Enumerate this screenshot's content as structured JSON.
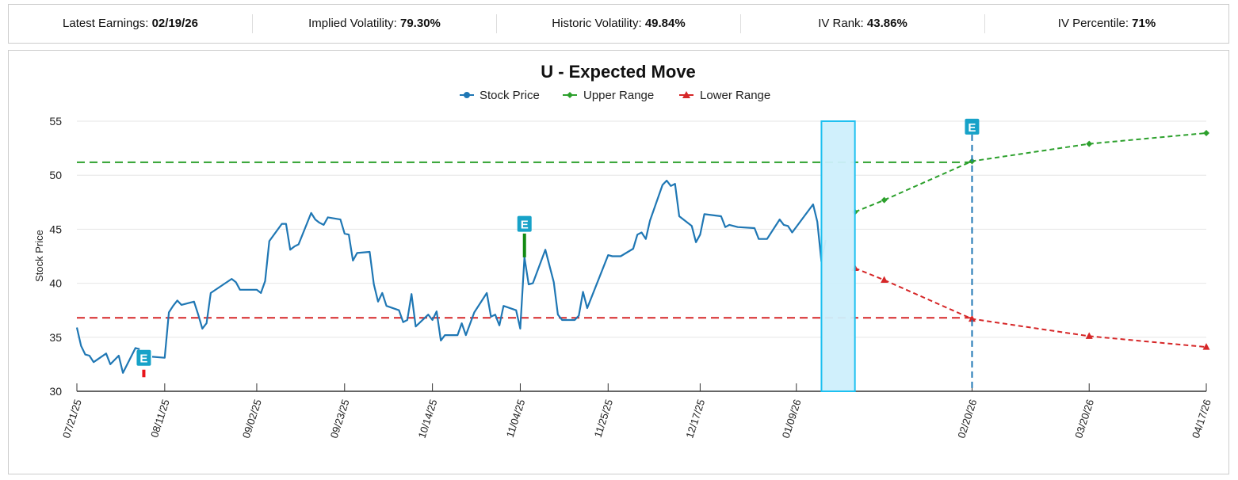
{
  "stats": [
    {
      "label": "Latest Earnings: ",
      "value": "02/19/26"
    },
    {
      "label": "Implied Volatility: ",
      "value": "79.30%"
    },
    {
      "label": "Historic Volatility: ",
      "value": "49.84%"
    },
    {
      "label": "IV Rank: ",
      "value": "43.86%"
    },
    {
      "label": "IV Percentile: ",
      "value": "71%"
    }
  ],
  "chart_data": {
    "type": "line",
    "title": "U - Expected Move",
    "ylabel": "Stock Price",
    "xlabel": "",
    "ylim": [
      30,
      55
    ],
    "yticks": [
      30,
      35,
      40,
      45,
      50,
      55
    ],
    "xlim": [
      "07/21/25",
      "04/17/26"
    ],
    "xticks": [
      "07/21/25",
      "08/11/25",
      "09/02/25",
      "09/23/25",
      "10/14/25",
      "11/04/25",
      "11/25/25",
      "12/17/25",
      "01/09/26",
      "02/20/26",
      "03/20/26",
      "04/17/26"
    ],
    "grid": "horizontal",
    "legend_position": "top",
    "colors": {
      "stock": "#1f77b4",
      "upper": "#2ca02c",
      "lower": "#d62728",
      "flag": "#17a2c8",
      "band_fill": "#cdeffc",
      "band_stroke": "#1ec0f0"
    },
    "series": [
      {
        "name": "Stock Price",
        "marker": "circle",
        "points": [
          [
            "07/21/25",
            35.9
          ],
          [
            "07/22/25",
            34.2
          ],
          [
            "07/23/25",
            33.4
          ],
          [
            "07/24/25",
            33.3
          ],
          [
            "07/25/25",
            32.7
          ],
          [
            "07/28/25",
            33.5
          ],
          [
            "07/29/25",
            32.5
          ],
          [
            "07/31/25",
            33.3
          ],
          [
            "08/01/25",
            31.7
          ],
          [
            "08/04/25",
            34.0
          ],
          [
            "08/05/25",
            33.9
          ],
          null,
          [
            "08/08/25",
            33.2
          ],
          [
            "08/11/25",
            33.1
          ],
          [
            "08/12/25",
            37.3
          ],
          [
            "08/13/25",
            37.9
          ],
          [
            "08/14/25",
            38.4
          ],
          [
            "08/15/25",
            38.0
          ],
          [
            "08/18/25",
            38.3
          ],
          [
            "08/19/25",
            37.1
          ],
          [
            "08/20/25",
            35.8
          ],
          [
            "08/21/25",
            36.3
          ],
          [
            "08/22/25",
            39.1
          ],
          [
            "08/27/25",
            40.4
          ],
          [
            "08/28/25",
            40.1
          ],
          [
            "08/29/25",
            39.4
          ],
          [
            "09/02/25",
            39.4
          ],
          [
            "09/03/25",
            39.1
          ],
          [
            "09/04/25",
            40.2
          ],
          [
            "09/05/25",
            43.9
          ],
          [
            "09/08/25",
            45.5
          ],
          [
            "09/09/25",
            45.5
          ],
          [
            "09/10/25",
            43.1
          ],
          [
            "09/11/25",
            43.4
          ],
          [
            "09/12/25",
            43.6
          ],
          [
            "09/15/25",
            46.5
          ],
          [
            "09/16/25",
            45.9
          ],
          [
            "09/17/25",
            45.6
          ],
          [
            "09/18/25",
            45.4
          ],
          [
            "09/19/25",
            46.1
          ],
          [
            "09/22/25",
            45.9
          ],
          [
            "09/23/25",
            44.6
          ],
          [
            "09/24/25",
            44.5
          ],
          [
            "09/25/25",
            42.1
          ],
          [
            "09/26/25",
            42.8
          ],
          [
            "09/29/25",
            42.9
          ],
          [
            "09/30/25",
            39.9
          ],
          [
            "10/01/25",
            38.3
          ],
          [
            "10/02/25",
            39.1
          ],
          [
            "10/03/25",
            37.9
          ],
          [
            "10/06/25",
            37.5
          ],
          [
            "10/07/25",
            36.4
          ],
          [
            "10/08/25",
            36.6
          ],
          [
            "10/09/25",
            39.0
          ],
          [
            "10/10/25",
            36.0
          ],
          [
            "10/13/25",
            37.1
          ],
          [
            "10/14/25",
            36.6
          ],
          [
            "10/15/25",
            37.4
          ],
          [
            "10/16/25",
            34.7
          ],
          [
            "10/17/25",
            35.2
          ],
          [
            "10/20/25",
            35.2
          ],
          [
            "10/21/25",
            36.3
          ],
          [
            "10/22/25",
            35.2
          ],
          [
            "10/24/25",
            37.3
          ],
          [
            "10/27/25",
            39.1
          ],
          [
            "10/28/25",
            36.9
          ],
          [
            "10/29/25",
            37.1
          ],
          [
            "10/30/25",
            36.1
          ],
          [
            "10/31/25",
            37.9
          ],
          [
            "11/03/25",
            37.5
          ],
          [
            "11/04/25",
            35.8
          ],
          [
            "11/05/25",
            42.4
          ],
          [
            "11/06/25",
            39.9
          ],
          [
            "11/07/25",
            40.0
          ],
          [
            "11/10/25",
            43.1
          ],
          [
            "11/12/25",
            40.1
          ],
          [
            "11/13/25",
            37.1
          ],
          [
            "11/14/25",
            36.6
          ],
          [
            "11/17/25",
            36.6
          ],
          [
            "11/18/25",
            37.0
          ],
          [
            "11/19/25",
            39.2
          ],
          [
            "11/20/25",
            37.7
          ],
          [
            "11/25/25",
            42.6
          ],
          [
            "11/26/25",
            42.5
          ],
          [
            "11/28/25",
            42.5
          ],
          [
            "12/01/25",
            43.2
          ],
          [
            "12/02/25",
            44.5
          ],
          [
            "12/03/25",
            44.7
          ],
          [
            "12/04/25",
            44.1
          ],
          [
            "12/05/25",
            45.8
          ],
          [
            "12/08/25",
            49.1
          ],
          [
            "12/09/25",
            49.5
          ],
          [
            "12/10/25",
            49.0
          ],
          [
            "12/11/25",
            49.2
          ],
          [
            "12/12/25",
            46.2
          ],
          [
            "12/15/25",
            45.3
          ],
          [
            "12/16/25",
            43.8
          ],
          [
            "12/17/25",
            44.5
          ],
          [
            "12/18/25",
            46.4
          ],
          [
            "12/22/25",
            46.2
          ],
          [
            "12/23/25",
            45.2
          ],
          [
            "12/24/25",
            45.4
          ],
          [
            "12/26/25",
            45.2
          ],
          [
            "12/30/25",
            45.1
          ],
          [
            "12/31/25",
            44.1
          ],
          [
            "01/02/26",
            44.1
          ],
          [
            "01/05/26",
            45.9
          ],
          [
            "01/06/26",
            45.4
          ],
          [
            "01/07/26",
            45.3
          ],
          [
            "01/08/26",
            44.7
          ],
          [
            "01/13/26",
            47.3
          ],
          [
            "01/14/26",
            45.7
          ],
          [
            "01/15/26",
            42.0
          ],
          [
            "01/16/26",
            44.0
          ]
        ]
      },
      {
        "name": "Upper Range",
        "marker": "diamond",
        "points": [
          [
            "01/23/26",
            46.6
          ],
          [
            "01/30/26",
            47.7
          ],
          [
            "02/20/26",
            51.3
          ],
          [
            "03/20/26",
            52.9
          ],
          [
            "04/17/26",
            53.9
          ]
        ]
      },
      {
        "name": "Lower Range",
        "marker": "triangle",
        "points": [
          [
            "01/23/26",
            41.4
          ],
          [
            "01/30/26",
            40.3
          ],
          [
            "02/20/26",
            36.7
          ],
          [
            "03/20/26",
            35.1
          ],
          [
            "04/17/26",
            34.1
          ]
        ]
      }
    ],
    "reference_lines": [
      {
        "name": "upper-level",
        "value": 51.2,
        "color": "#2ca02c"
      },
      {
        "name": "lower-level",
        "value": 36.8,
        "color": "#d62728"
      }
    ],
    "highlight_band": [
      "01/15/26",
      "01/23/26"
    ],
    "earnings_markers": [
      {
        "label": "E",
        "date": "08/06/25",
        "bar": [
          31.3,
          32.0
        ],
        "bar_color": "#e8141b",
        "flag_at": 33.1
      },
      {
        "label": "E",
        "date": "11/05/25",
        "bar": [
          42.4,
          44.6
        ],
        "bar_color": "#138a13",
        "flag_at": 45.5
      },
      {
        "label": "E",
        "date": "02/20/26",
        "vertical_line": true,
        "line_color": "#1f77b4",
        "flag_at": 54.5
      }
    ]
  }
}
